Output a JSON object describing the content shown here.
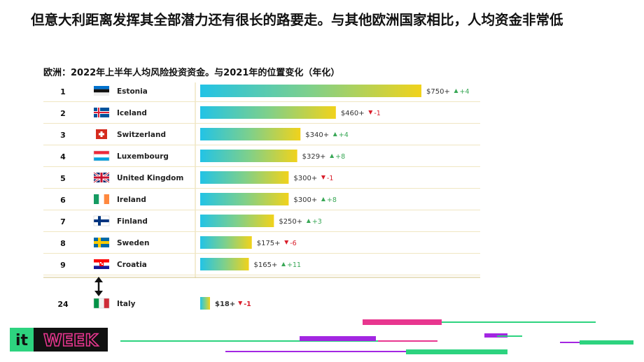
{
  "headline": "但意大利距离发挥其全部潜力还有很长的路要走。与其他欧洲国家相比，人均资金非常低",
  "chart_data": {
    "type": "bar",
    "title": "欧洲：2022年上半年人均风险投资资金。与2021年的位置变化（年化）",
    "xlim": [
      0,
      750
    ],
    "rows": [
      {
        "rank": "1",
        "country": "Estonia",
        "value": 750,
        "label": "$750+",
        "change": "+4",
        "dir": "up",
        "flag": "estonia-flag-icon"
      },
      {
        "rank": "2",
        "country": "Iceland",
        "value": 460,
        "label": "$460+",
        "change": "-1",
        "dir": "down",
        "flag": "iceland-flag-icon"
      },
      {
        "rank": "3",
        "country": "Switzerland",
        "value": 340,
        "label": "$340+",
        "change": "+4",
        "dir": "up",
        "flag": "switzerland-flag-icon"
      },
      {
        "rank": "4",
        "country": "Luxembourg",
        "value": 329,
        "label": "$329+",
        "change": "+8",
        "dir": "up",
        "flag": "luxembourg-flag-icon"
      },
      {
        "rank": "5",
        "country": "United Kingdom",
        "value": 300,
        "label": "$300+",
        "change": "-1",
        "dir": "down",
        "flag": "uk-flag-icon"
      },
      {
        "rank": "6",
        "country": "Ireland",
        "value": 300,
        "label": "$300+",
        "change": "+8",
        "dir": "up",
        "flag": "ireland-flag-icon"
      },
      {
        "rank": "7",
        "country": "Finland",
        "value": 250,
        "label": "$250+",
        "change": "+3",
        "dir": "up",
        "flag": "finland-flag-icon"
      },
      {
        "rank": "8",
        "country": "Sweden",
        "value": 175,
        "label": "$175+",
        "change": "-6",
        "dir": "down",
        "flag": "sweden-flag-icon"
      },
      {
        "rank": "9",
        "country": "Croatia",
        "value": 165,
        "label": "$165+",
        "change": "+11",
        "dir": "up",
        "flag": "croatia-flag-icon"
      },
      {
        "rank": "24",
        "country": "Italy",
        "value": 18,
        "label": "$18+",
        "change": "-1",
        "dir": "down",
        "flag": "italy-flag-icon"
      }
    ],
    "colors": {
      "bar_start": "#22c3e6",
      "bar_mid": "#7fd08a",
      "bar_end": "#f1d21b",
      "up": "#3aa857",
      "down": "#d91e2b"
    }
  },
  "logo": {
    "text_it": "it",
    "text_week": "WEEK",
    "color_green": "#2dd37f",
    "color_pink": "#e8368f"
  }
}
